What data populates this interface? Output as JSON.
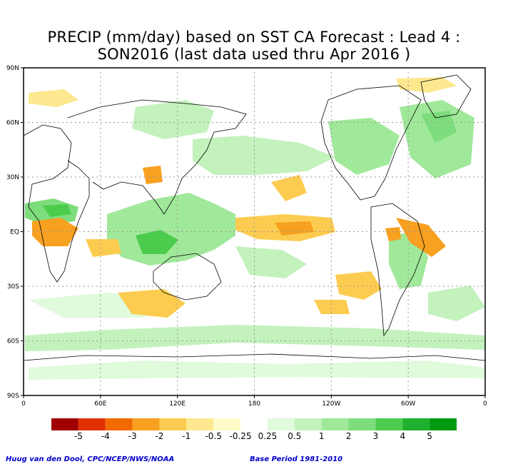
{
  "title": {
    "line1": "PRECIP (mm/day) based on SST CA Forecast : Lead 4 :",
    "line2": "SON2016 (last data used thru Apr 2016 )"
  },
  "axes": {
    "lat_labels": [
      "90N",
      "60N",
      "30N",
      "EQ",
      "30S",
      "60S",
      "90S"
    ],
    "lon_labels": [
      "0",
      "60E",
      "120E",
      "180",
      "120W",
      "60W",
      "0"
    ]
  },
  "legend": {
    "labels": [
      "-5",
      "-4",
      "-3",
      "-2",
      "-1",
      "-0.5",
      "-0.25",
      "0.25",
      "0.5",
      "1",
      "2",
      "3",
      "4",
      "5"
    ],
    "colors": [
      "#a00000",
      "#e03000",
      "#f26a00",
      "#f8a020",
      "#fccc50",
      "#fde890",
      "#fffbc8",
      "#ffffff",
      "#e0fadc",
      "#c3f2bd",
      "#a0e89a",
      "#7ddd7c",
      "#4ccc4c",
      "#20b030",
      "#009a10"
    ]
  },
  "footer": {
    "credit": "Huug van den Dool, CPC/NCEP/NWS/NOAA",
    "base_period": "Base Period 1981-2010"
  }
}
